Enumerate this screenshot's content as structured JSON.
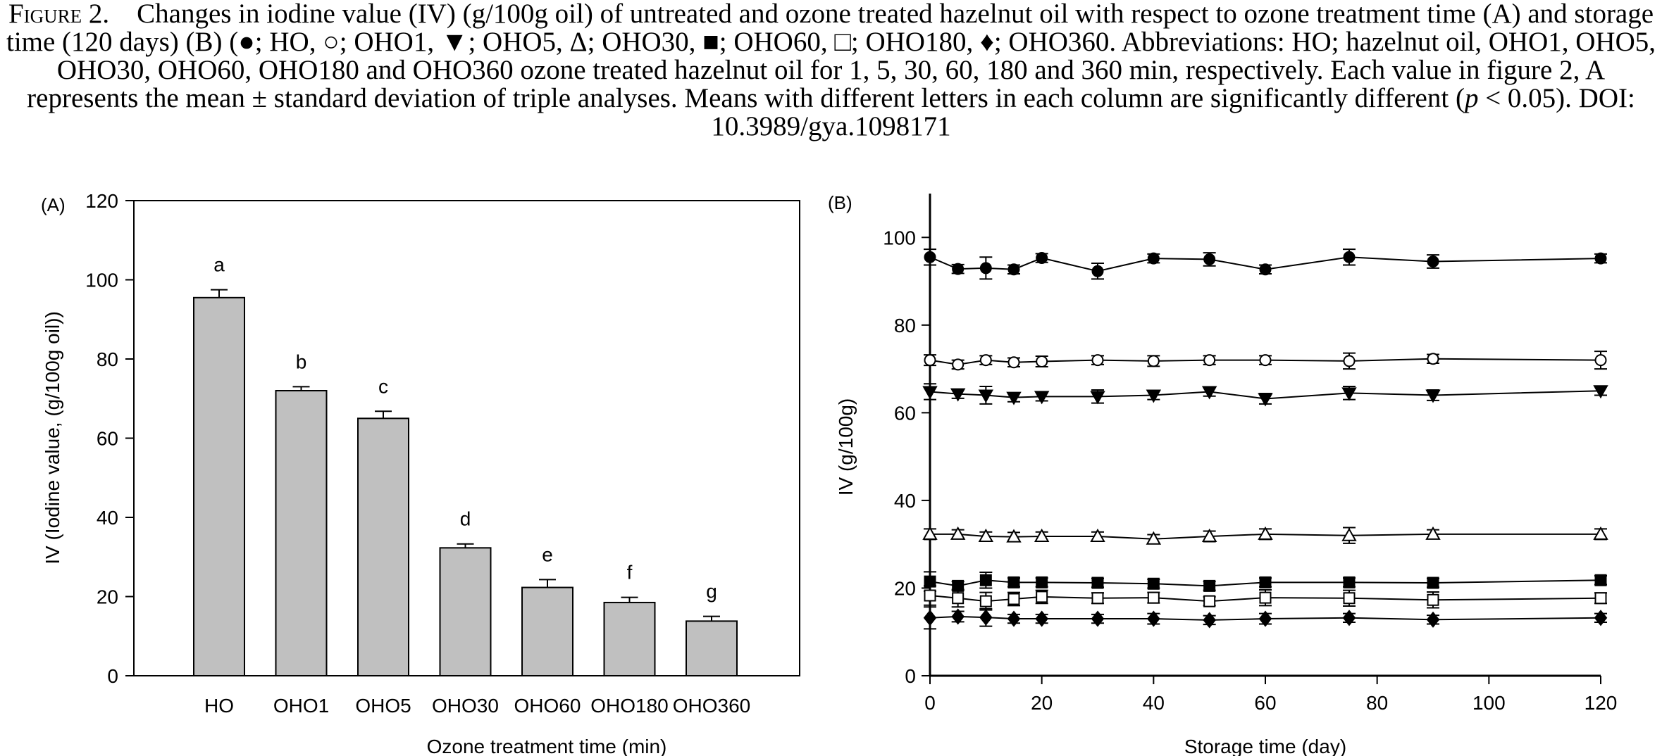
{
  "caption": {
    "label": "Figure 2.",
    "text": "Changes in iodine value (IV) (g/100g oil) of untreated and ozone treated hazelnut oil with respect to ozone treatment time (A) and storage time (120 days) (B) (●; HO, ○; OHO1, ▼; OHO5, Δ; OHO30, ■; OHO60, □; OHO180, ♦; OHO360. Abbreviations: HO; hazelnut oil, OHO1, OHO5, OHO30, OHO60, OHO180 and OHO360 ozone treated hazelnut oil for 1, 5, 30, 60, 180 and 360 min, respectively. Each value in figure 2, A represents the mean ± standard deviation of triple analyses. Means with different letters in each column are significantly different (",
    "p_symbol": "p",
    "text_end": " < 0.05). DOI: 10.3989/gya.1098171"
  },
  "chart_data": [
    {
      "type": "bar",
      "panel_label": "(A)",
      "xlabel": "Ozone treatment time (min)",
      "ylabel": "IV (Iodine value, (g/100g oil))",
      "ylim": [
        0,
        120
      ],
      "yticks": [
        0,
        20,
        40,
        60,
        80,
        100,
        120
      ],
      "grid": false,
      "categories": [
        "HO",
        "OHO1",
        "OHO5",
        "OHO30",
        "OHO60",
        "OHO180",
        "OHO360"
      ],
      "values": [
        95.5,
        72.0,
        65.0,
        32.3,
        22.3,
        18.5,
        13.8
      ],
      "errors": [
        2.0,
        1.0,
        1.8,
        1.0,
        2.0,
        1.3,
        1.2
      ],
      "significance_letters": [
        "a",
        "b",
        "c",
        "d",
        "e",
        "f",
        "g"
      ],
      "bar_color": "#c0c0c0"
    },
    {
      "type": "line",
      "panel_label": "(B)",
      "xlabel": "Storage time (day)",
      "ylabel": "IV (g/100g)",
      "xlim": [
        0,
        120
      ],
      "ylim": [
        0,
        110
      ],
      "xticks": [
        0,
        20,
        40,
        60,
        80,
        100,
        120
      ],
      "yticks": [
        0,
        20,
        40,
        60,
        80,
        100
      ],
      "grid": false,
      "x": [
        0,
        5,
        10,
        15,
        20,
        30,
        40,
        50,
        60,
        75,
        90,
        120
      ],
      "series": [
        {
          "marker": "circle-filled",
          "values": [
            95.5,
            92.8,
            93.0,
            92.7,
            95.3,
            92.3,
            95.2,
            95.0,
            92.7,
            95.5,
            94.5,
            95.2
          ],
          "errors": [
            1.8,
            1.0,
            2.5,
            1.0,
            1.0,
            1.8,
            1.0,
            1.5,
            1.0,
            1.8,
            1.5,
            1.0
          ]
        },
        {
          "marker": "circle-open",
          "values": [
            72.0,
            71.0,
            72.0,
            71.5,
            71.7,
            72.0,
            71.8,
            72.0,
            72.0,
            71.8,
            72.3,
            72.0
          ],
          "errors": [
            1.2,
            1.0,
            1.0,
            1.0,
            1.2,
            1.0,
            1.2,
            1.0,
            1.0,
            1.8,
            1.0,
            2.0
          ]
        },
        {
          "marker": "triangle-down-filled",
          "values": [
            64.8,
            64.3,
            64.0,
            63.5,
            63.7,
            63.7,
            64.0,
            64.8,
            63.2,
            64.5,
            64.0,
            65.0
          ],
          "errors": [
            1.8,
            1.0,
            2.0,
            1.0,
            1.0,
            1.5,
            1.0,
            1.0,
            1.2,
            1.5,
            1.2,
            1.0
          ]
        },
        {
          "marker": "triangle-up-open",
          "values": [
            32.3,
            32.3,
            31.8,
            31.7,
            31.8,
            31.8,
            31.2,
            31.8,
            32.3,
            32.0,
            32.3,
            32.3
          ],
          "errors": [
            1.2,
            1.0,
            1.0,
            1.0,
            1.0,
            1.0,
            1.0,
            1.2,
            1.2,
            1.8,
            1.0,
            1.2
          ]
        },
        {
          "marker": "square-filled",
          "values": [
            21.5,
            20.5,
            21.8,
            21.3,
            21.3,
            21.2,
            21.0,
            20.5,
            21.3,
            21.3,
            21.2,
            21.8
          ],
          "errors": [
            2.2,
            1.0,
            1.8,
            1.0,
            1.0,
            1.0,
            1.0,
            1.0,
            1.0,
            1.0,
            1.0,
            1.0
          ]
        },
        {
          "marker": "square-open",
          "values": [
            18.3,
            17.7,
            17.0,
            17.5,
            18.0,
            17.7,
            17.8,
            17.0,
            17.8,
            17.7,
            17.3,
            17.7
          ],
          "errors": [
            2.2,
            2.0,
            2.0,
            1.5,
            1.5,
            1.2,
            1.2,
            1.0,
            1.8,
            1.8,
            1.8,
            1.2
          ]
        },
        {
          "marker": "diamond-filled",
          "values": [
            13.2,
            13.5,
            13.3,
            13.0,
            13.0,
            13.0,
            13.0,
            12.7,
            13.0,
            13.2,
            12.8,
            13.2
          ],
          "errors": [
            2.5,
            1.2,
            2.0,
            1.0,
            1.0,
            1.0,
            1.2,
            1.0,
            1.2,
            1.0,
            1.0,
            1.0
          ]
        }
      ]
    }
  ]
}
